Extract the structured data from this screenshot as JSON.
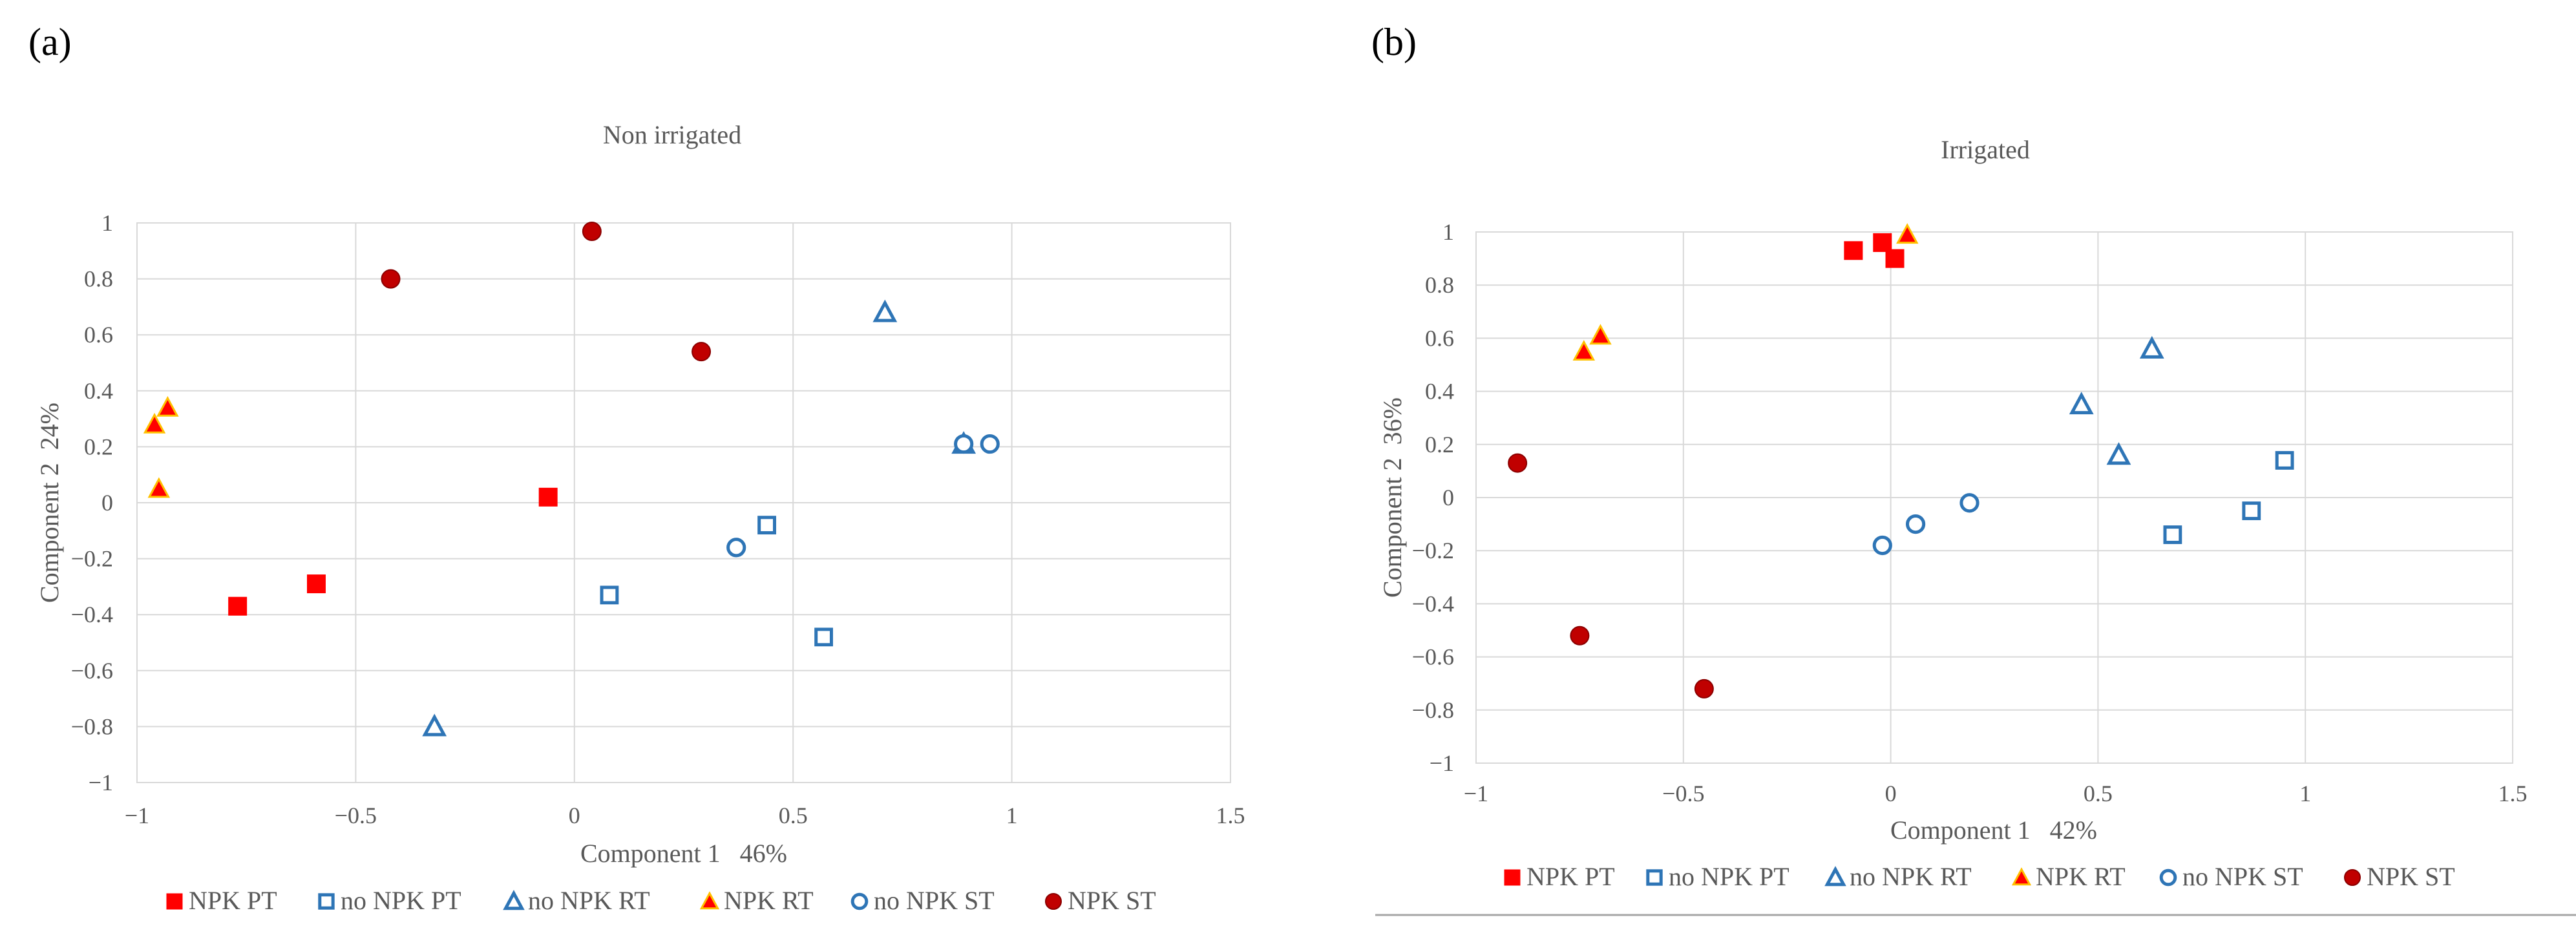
{
  "chart_data": [
    {
      "type": "scatter",
      "panel": "(a)",
      "title": "Non irrigated",
      "xlabel": "Component 1   46%",
      "ylabel": "Component 2  24%",
      "xlim": [
        -1,
        1.5
      ],
      "ylim": [
        -1,
        1
      ],
      "xticks": [
        -1,
        -0.5,
        0,
        0.5,
        1,
        1.5
      ],
      "yticks": [
        1,
        0.8,
        0.6,
        0.4,
        0.2,
        0,
        -0.2,
        -0.4,
        -0.6,
        -0.8,
        -1
      ],
      "xtick_labels": [
        "−1",
        "−0.5",
        "0",
        "0.5",
        "1",
        "1.5"
      ],
      "ytick_labels": [
        "1",
        "0.8",
        "0.6",
        "0.4",
        "0.2",
        "0",
        "−0.2",
        "−0.4",
        "−0.6",
        "−0.8",
        "−1"
      ],
      "series": [
        {
          "name": "NPK PT",
          "marker": "square-filled",
          "color": "#ff0000",
          "points": [
            [
              -0.77,
              -0.37
            ],
            [
              -0.59,
              -0.29
            ],
            [
              -0.06,
              0.02
            ]
          ]
        },
        {
          "name": "no NPK PT",
          "marker": "square-open",
          "color": "#2e75b6",
          "points": [
            [
              0.08,
              -0.33
            ],
            [
              0.44,
              -0.08
            ],
            [
              0.57,
              -0.48
            ]
          ]
        },
        {
          "name": "no NPK RT",
          "marker": "triangle-open",
          "color": "#2e75b6",
          "points": [
            [
              -0.32,
              -0.8
            ],
            [
              0.71,
              0.68
            ],
            [
              0.89,
              0.21
            ]
          ]
        },
        {
          "name": "NPK RT",
          "marker": "triangle-filled",
          "color": "#ff0000",
          "points": [
            [
              -0.96,
              0.28
            ],
            [
              -0.93,
              0.34
            ],
            [
              -0.95,
              0.05
            ]
          ]
        },
        {
          "name": "no NPK ST",
          "marker": "circle-open",
          "color": "#2e75b6",
          "points": [
            [
              0.37,
              -0.16
            ],
            [
              0.89,
              0.21
            ],
            [
              0.95,
              0.21
            ]
          ]
        },
        {
          "name": "NPK ST",
          "marker": "circle-filled",
          "color": "#c00000",
          "points": [
            [
              -0.42,
              0.8
            ],
            [
              0.04,
              0.97
            ],
            [
              0.29,
              0.54
            ]
          ]
        }
      ]
    },
    {
      "type": "scatter",
      "panel": "(b)",
      "title": "Irrigated",
      "xlabel": "Component 1   42%",
      "ylabel": "Component 2  36%",
      "xlim": [
        -1,
        1.5
      ],
      "ylim": [
        -1,
        1
      ],
      "xticks": [
        -1,
        -0.5,
        0,
        0.5,
        1,
        1.5
      ],
      "yticks": [
        1,
        0.8,
        0.6,
        0.4,
        0.2,
        0,
        -0.2,
        -0.4,
        -0.6,
        -0.8,
        -1
      ],
      "xtick_labels": [
        "−1",
        "−0.5",
        "0",
        "0.5",
        "1",
        "1.5"
      ],
      "ytick_labels": [
        "1",
        "0.8",
        "0.6",
        "0.4",
        "0.2",
        "0",
        "−0.2",
        "−0.4",
        "−0.6",
        "−0.8",
        "−1"
      ],
      "series": [
        {
          "name": "NPK PT",
          "marker": "square-filled",
          "color": "#ff0000",
          "points": [
            [
              -0.09,
              0.93
            ],
            [
              -0.02,
              0.96
            ],
            [
              0.01,
              0.9
            ]
          ]
        },
        {
          "name": "no NPK PT",
          "marker": "square-open",
          "color": "#2e75b6",
          "points": [
            [
              0.68,
              -0.14
            ],
            [
              0.87,
              -0.05
            ],
            [
              0.95,
              0.14
            ]
          ]
        },
        {
          "name": "no NPK RT",
          "marker": "triangle-open",
          "color": "#2e75b6",
          "points": [
            [
              0.46,
              0.35
            ],
            [
              0.55,
              0.16
            ],
            [
              0.63,
              0.56
            ]
          ]
        },
        {
          "name": "NPK RT",
          "marker": "triangle-filled",
          "color": "#ff0000",
          "points": [
            [
              -0.74,
              0.55
            ],
            [
              -0.7,
              0.61
            ],
            [
              0.04,
              0.99
            ]
          ]
        },
        {
          "name": "no NPK ST",
          "marker": "circle-open",
          "color": "#2e75b6",
          "points": [
            [
              -0.02,
              -0.18
            ],
            [
              0.06,
              -0.1
            ],
            [
              0.19,
              -0.02
            ]
          ]
        },
        {
          "name": "NPK ST",
          "marker": "circle-filled",
          "color": "#c00000",
          "points": [
            [
              -0.9,
              0.13
            ],
            [
              -0.75,
              -0.52
            ],
            [
              -0.45,
              -0.72
            ]
          ]
        }
      ]
    }
  ]
}
